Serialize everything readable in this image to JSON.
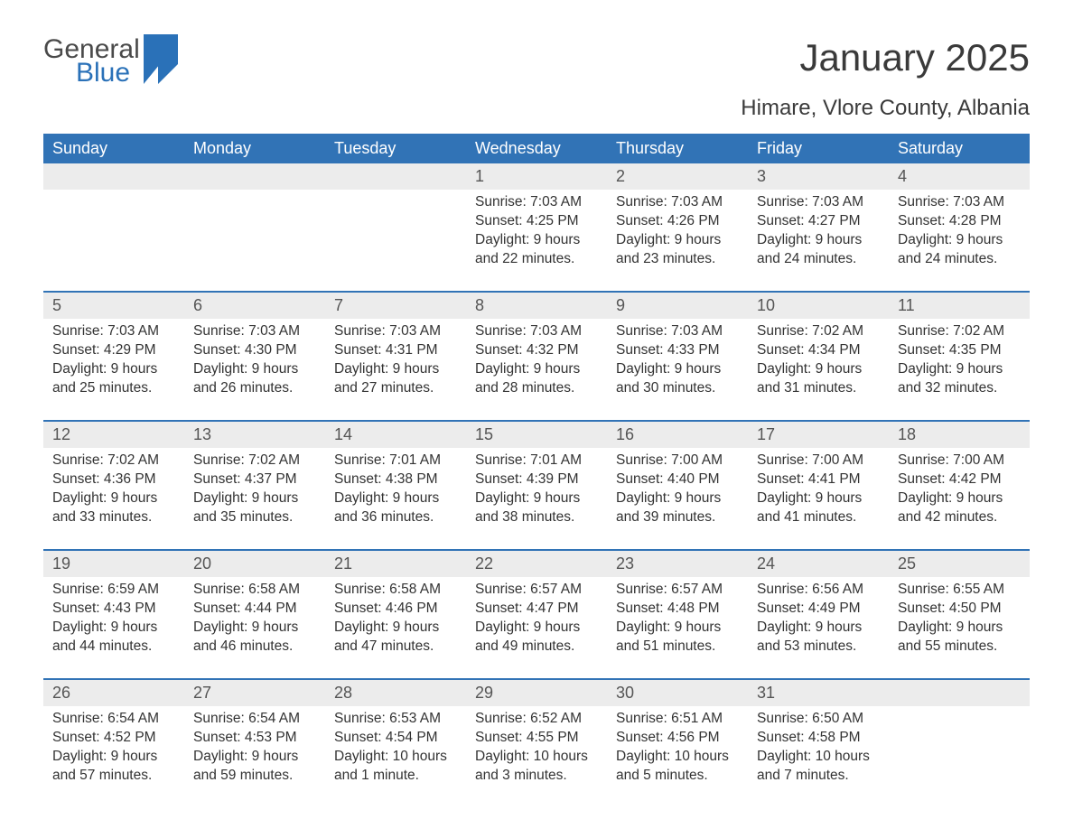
{
  "brand": {
    "word1": "General",
    "word2": "Blue",
    "color_primary": "#2a71b8"
  },
  "title": "January 2025",
  "location": "Himare, Vlore County, Albania",
  "colors": {
    "header_bg": "#3173b6",
    "header_text": "#ffffff",
    "daynum_bg": "#ececec",
    "text": "#333333",
    "rule": "#3173b6",
    "page_bg": "#ffffff"
  },
  "typography": {
    "title_fontsize": 42,
    "location_fontsize": 24,
    "header_fontsize": 18,
    "body_fontsize": 15.5
  },
  "layout": {
    "columns": 7,
    "rows": 5
  },
  "weekdays": [
    "Sunday",
    "Monday",
    "Tuesday",
    "Wednesday",
    "Thursday",
    "Friday",
    "Saturday"
  ],
  "weeks": [
    [
      null,
      null,
      null,
      {
        "day": "1",
        "sunrise": "Sunrise: 7:03 AM",
        "sunset": "Sunset: 4:25 PM",
        "daylight": "Daylight: 9 hours and 22 minutes."
      },
      {
        "day": "2",
        "sunrise": "Sunrise: 7:03 AM",
        "sunset": "Sunset: 4:26 PM",
        "daylight": "Daylight: 9 hours and 23 minutes."
      },
      {
        "day": "3",
        "sunrise": "Sunrise: 7:03 AM",
        "sunset": "Sunset: 4:27 PM",
        "daylight": "Daylight: 9 hours and 24 minutes."
      },
      {
        "day": "4",
        "sunrise": "Sunrise: 7:03 AM",
        "sunset": "Sunset: 4:28 PM",
        "daylight": "Daylight: 9 hours and 24 minutes."
      }
    ],
    [
      {
        "day": "5",
        "sunrise": "Sunrise: 7:03 AM",
        "sunset": "Sunset: 4:29 PM",
        "daylight": "Daylight: 9 hours and 25 minutes."
      },
      {
        "day": "6",
        "sunrise": "Sunrise: 7:03 AM",
        "sunset": "Sunset: 4:30 PM",
        "daylight": "Daylight: 9 hours and 26 minutes."
      },
      {
        "day": "7",
        "sunrise": "Sunrise: 7:03 AM",
        "sunset": "Sunset: 4:31 PM",
        "daylight": "Daylight: 9 hours and 27 minutes."
      },
      {
        "day": "8",
        "sunrise": "Sunrise: 7:03 AM",
        "sunset": "Sunset: 4:32 PM",
        "daylight": "Daylight: 9 hours and 28 minutes."
      },
      {
        "day": "9",
        "sunrise": "Sunrise: 7:03 AM",
        "sunset": "Sunset: 4:33 PM",
        "daylight": "Daylight: 9 hours and 30 minutes."
      },
      {
        "day": "10",
        "sunrise": "Sunrise: 7:02 AM",
        "sunset": "Sunset: 4:34 PM",
        "daylight": "Daylight: 9 hours and 31 minutes."
      },
      {
        "day": "11",
        "sunrise": "Sunrise: 7:02 AM",
        "sunset": "Sunset: 4:35 PM",
        "daylight": "Daylight: 9 hours and 32 minutes."
      }
    ],
    [
      {
        "day": "12",
        "sunrise": "Sunrise: 7:02 AM",
        "sunset": "Sunset: 4:36 PM",
        "daylight": "Daylight: 9 hours and 33 minutes."
      },
      {
        "day": "13",
        "sunrise": "Sunrise: 7:02 AM",
        "sunset": "Sunset: 4:37 PM",
        "daylight": "Daylight: 9 hours and 35 minutes."
      },
      {
        "day": "14",
        "sunrise": "Sunrise: 7:01 AM",
        "sunset": "Sunset: 4:38 PM",
        "daylight": "Daylight: 9 hours and 36 minutes."
      },
      {
        "day": "15",
        "sunrise": "Sunrise: 7:01 AM",
        "sunset": "Sunset: 4:39 PM",
        "daylight": "Daylight: 9 hours and 38 minutes."
      },
      {
        "day": "16",
        "sunrise": "Sunrise: 7:00 AM",
        "sunset": "Sunset: 4:40 PM",
        "daylight": "Daylight: 9 hours and 39 minutes."
      },
      {
        "day": "17",
        "sunrise": "Sunrise: 7:00 AM",
        "sunset": "Sunset: 4:41 PM",
        "daylight": "Daylight: 9 hours and 41 minutes."
      },
      {
        "day": "18",
        "sunrise": "Sunrise: 7:00 AM",
        "sunset": "Sunset: 4:42 PM",
        "daylight": "Daylight: 9 hours and 42 minutes."
      }
    ],
    [
      {
        "day": "19",
        "sunrise": "Sunrise: 6:59 AM",
        "sunset": "Sunset: 4:43 PM",
        "daylight": "Daylight: 9 hours and 44 minutes."
      },
      {
        "day": "20",
        "sunrise": "Sunrise: 6:58 AM",
        "sunset": "Sunset: 4:44 PM",
        "daylight": "Daylight: 9 hours and 46 minutes."
      },
      {
        "day": "21",
        "sunrise": "Sunrise: 6:58 AM",
        "sunset": "Sunset: 4:46 PM",
        "daylight": "Daylight: 9 hours and 47 minutes."
      },
      {
        "day": "22",
        "sunrise": "Sunrise: 6:57 AM",
        "sunset": "Sunset: 4:47 PM",
        "daylight": "Daylight: 9 hours and 49 minutes."
      },
      {
        "day": "23",
        "sunrise": "Sunrise: 6:57 AM",
        "sunset": "Sunset: 4:48 PM",
        "daylight": "Daylight: 9 hours and 51 minutes."
      },
      {
        "day": "24",
        "sunrise": "Sunrise: 6:56 AM",
        "sunset": "Sunset: 4:49 PM",
        "daylight": "Daylight: 9 hours and 53 minutes."
      },
      {
        "day": "25",
        "sunrise": "Sunrise: 6:55 AM",
        "sunset": "Sunset: 4:50 PM",
        "daylight": "Daylight: 9 hours and 55 minutes."
      }
    ],
    [
      {
        "day": "26",
        "sunrise": "Sunrise: 6:54 AM",
        "sunset": "Sunset: 4:52 PM",
        "daylight": "Daylight: 9 hours and 57 minutes."
      },
      {
        "day": "27",
        "sunrise": "Sunrise: 6:54 AM",
        "sunset": "Sunset: 4:53 PM",
        "daylight": "Daylight: 9 hours and 59 minutes."
      },
      {
        "day": "28",
        "sunrise": "Sunrise: 6:53 AM",
        "sunset": "Sunset: 4:54 PM",
        "daylight": "Daylight: 10 hours and 1 minute."
      },
      {
        "day": "29",
        "sunrise": "Sunrise: 6:52 AM",
        "sunset": "Sunset: 4:55 PM",
        "daylight": "Daylight: 10 hours and 3 minutes."
      },
      {
        "day": "30",
        "sunrise": "Sunrise: 6:51 AM",
        "sunset": "Sunset: 4:56 PM",
        "daylight": "Daylight: 10 hours and 5 minutes."
      },
      {
        "day": "31",
        "sunrise": "Sunrise: 6:50 AM",
        "sunset": "Sunset: 4:58 PM",
        "daylight": "Daylight: 10 hours and 7 minutes."
      },
      null
    ]
  ]
}
